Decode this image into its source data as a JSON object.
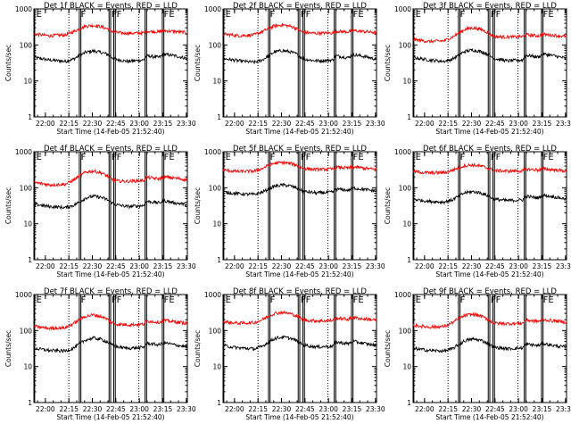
{
  "chart_data": {
    "type": "line",
    "panel_count": 9,
    "layout": "3x3 grid",
    "shared_x_axis": {
      "label": "Start Time (14-Feb-05 21:52:40)",
      "range_minutes": [
        0,
        98
      ],
      "tick_labels": [
        "22:00",
        "22:15",
        "22:30",
        "22:45",
        "23:00",
        "23:15",
        "23:30"
      ],
      "tick_values_minutes": [
        7.33,
        22.33,
        37.33,
        52.33,
        67.33,
        82.33,
        97.33
      ]
    },
    "shared_y_axis": {
      "label": "Counts/sec",
      "scale": "log",
      "range": [
        1,
        1000
      ],
      "tick_labels": [
        "1",
        "10",
        "100",
        "1000"
      ],
      "tick_values": [
        1,
        10,
        100,
        1000
      ]
    },
    "colors": {
      "events": "#000000",
      "lld": "#ff0000",
      "axis": "#000000",
      "background": "#ffffff"
    },
    "flag_markers": {
      "vertical_lines_minutes": [
        0.5,
        29,
        30,
        48,
        49,
        51,
        52,
        71,
        72,
        82,
        83
      ],
      "dotted_lines_minutes": [
        22.3,
        67
      ]
    },
    "panels": [
      {
        "title": "Det 1f BLACK = Events, RED = LLD",
        "flag_labels": [
          {
            "text": "E",
            "minute": 1.5
          },
          {
            "text": "F",
            "minute": 30
          },
          {
            "text": "FF",
            "minute": 49.5
          },
          {
            "text": "FE",
            "minute": 83
          }
        ],
        "series": [
          {
            "name": "Events",
            "color": "#000000",
            "minutes": [
              0,
              10,
              20,
              25,
              29,
              33,
              38,
              43,
              47,
              49,
              52,
              60,
              70,
              72,
              80,
              83,
              90,
              98
            ],
            "values": [
              45,
              38,
              35,
              40,
              50,
              62,
              68,
              62,
              55,
              48,
              40,
              35,
              38,
              50,
              45,
              55,
              50,
              42
            ]
          },
          {
            "name": "LLD",
            "color": "#ff0000",
            "minutes": [
              0,
              10,
              20,
              25,
              29,
              33,
              38,
              43,
              47,
              49,
              52,
              60,
              70,
              72,
              80,
              83,
              90,
              98
            ],
            "values": [
              200,
              180,
              190,
              230,
              280,
              330,
              350,
              320,
              280,
              250,
              220,
              210,
              215,
              240,
              230,
              250,
              235,
              220
            ]
          }
        ]
      },
      {
        "title": "Det 2f BLACK = Events, RED = LLD",
        "flag_labels": [
          {
            "text": "E",
            "minute": 1.5
          },
          {
            "text": "F",
            "minute": 30
          },
          {
            "text": "FF",
            "minute": 49.5
          },
          {
            "text": "FE",
            "minute": 83
          }
        ],
        "series": [
          {
            "name": "Events",
            "color": "#000000",
            "minutes": [
              0,
              10,
              20,
              25,
              29,
              33,
              38,
              43,
              47,
              49,
              52,
              60,
              70,
              72,
              80,
              83,
              90,
              98
            ],
            "values": [
              42,
              36,
              33,
              38,
              50,
              64,
              70,
              64,
              56,
              48,
              40,
              36,
              38,
              50,
              44,
              54,
              48,
              40
            ]
          },
          {
            "name": "LLD",
            "color": "#ff0000",
            "minutes": [
              0,
              10,
              20,
              25,
              29,
              33,
              38,
              43,
              47,
              49,
              52,
              60,
              70,
              72,
              80,
              83,
              90,
              98
            ],
            "values": [
              200,
              180,
              190,
              235,
              285,
              340,
              360,
              330,
              285,
              250,
              220,
              210,
              215,
              240,
              230,
              250,
              235,
              220
            ]
          }
        ]
      },
      {
        "title": "Det 3f BLACK = Events, RED = LLD",
        "flag_labels": [
          {
            "text": "E",
            "minute": 1.5
          },
          {
            "text": "F",
            "minute": 30
          },
          {
            "text": "FF",
            "minute": 49.5
          },
          {
            "text": "FE",
            "minute": 83
          }
        ],
        "series": [
          {
            "name": "Events",
            "color": "#000000",
            "minutes": [
              0,
              10,
              20,
              25,
              29,
              33,
              38,
              43,
              47,
              49,
              52,
              60,
              70,
              72,
              80,
              83,
              90,
              98
            ],
            "values": [
              45,
              38,
              35,
              40,
              52,
              66,
              72,
              66,
              57,
              50,
              42,
              36,
              38,
              52,
              46,
              56,
              50,
              42
            ]
          },
          {
            "name": "LLD",
            "color": "#ff0000",
            "minutes": [
              0,
              10,
              20,
              25,
              29,
              33,
              38,
              43,
              47,
              49,
              52,
              60,
              70,
              72,
              80,
              83,
              90,
              98
            ],
            "values": [
              140,
              125,
              130,
              165,
              210,
              270,
              300,
              275,
              230,
              200,
              170,
              165,
              170,
              190,
              180,
              195,
              185,
              170
            ]
          }
        ]
      },
      {
        "title": "Det 4f BLACK = Events, RED = LLD",
        "flag_labels": [
          {
            "text": "E",
            "minute": 1.5
          },
          {
            "text": "F",
            "minute": 30
          },
          {
            "text": "FF",
            "minute": 49.5
          },
          {
            "text": "FE",
            "minute": 83
          }
        ],
        "series": [
          {
            "name": "Events",
            "color": "#000000",
            "minutes": [
              0,
              10,
              20,
              25,
              29,
              33,
              38,
              43,
              47,
              49,
              52,
              60,
              70,
              72,
              80,
              83,
              90,
              98
            ],
            "values": [
              35,
              30,
              28,
              32,
              40,
              52,
              58,
              54,
              46,
              40,
              34,
              30,
              32,
              42,
              38,
              44,
              38,
              34
            ]
          },
          {
            "name": "LLD",
            "color": "#ff0000",
            "minutes": [
              0,
              10,
              20,
              25,
              29,
              33,
              38,
              43,
              47,
              49,
              52,
              60,
              70,
              72,
              80,
              83,
              90,
              98
            ],
            "values": [
              140,
              120,
              125,
              160,
              210,
              270,
              290,
              260,
              210,
              180,
              155,
              150,
              160,
              195,
              175,
              200,
              185,
              165
            ]
          }
        ]
      },
      {
        "title": "Det 5f BLACK = Events, RED = LLD",
        "flag_labels": [
          {
            "text": "E",
            "minute": 1.5
          },
          {
            "text": "F",
            "minute": 30
          },
          {
            "text": "FF",
            "minute": 49.5
          },
          {
            "text": "FE",
            "minute": 83
          }
        ],
        "series": [
          {
            "name": "Events",
            "color": "#000000",
            "minutes": [
              0,
              10,
              20,
              25,
              29,
              33,
              38,
              43,
              47,
              49,
              52,
              60,
              70,
              72,
              80,
              83,
              90,
              98
            ],
            "values": [
              75,
              68,
              65,
              75,
              92,
              110,
              120,
              112,
              98,
              88,
              78,
              72,
              75,
              92,
              85,
              98,
              90,
              80
            ]
          },
          {
            "name": "LLD",
            "color": "#ff0000",
            "minutes": [
              0,
              10,
              20,
              25,
              29,
              33,
              38,
              43,
              47,
              49,
              52,
              60,
              70,
              72,
              80,
              83,
              90,
              98
            ],
            "values": [
              310,
              280,
              290,
              340,
              420,
              480,
              500,
              470,
              420,
              380,
              340,
              320,
              330,
              370,
              350,
              380,
              350,
              320
            ]
          }
        ]
      },
      {
        "title": "Det 6f BLACK = Events, RED = LLD",
        "flag_labels": [
          {
            "text": "E",
            "minute": 1.5
          },
          {
            "text": "F",
            "minute": 30
          },
          {
            "text": "FF",
            "minute": 49.5
          },
          {
            "text": "FE",
            "minute": 83
          }
        ],
        "series": [
          {
            "name": "Events",
            "color": "#000000",
            "minutes": [
              0,
              10,
              20,
              25,
              29,
              33,
              38,
              43,
              47,
              49,
              52,
              60,
              70,
              72,
              80,
              83,
              90,
              98
            ],
            "values": [
              48,
              42,
              40,
              46,
              58,
              72,
              78,
              72,
              62,
              56,
              48,
              44,
              46,
              58,
              52,
              62,
              56,
              48
            ]
          },
          {
            "name": "LLD",
            "color": "#ff0000",
            "minutes": [
              0,
              10,
              20,
              25,
              29,
              33,
              38,
              43,
              47,
              49,
              52,
              60,
              70,
              72,
              80,
              83,
              90,
              98
            ],
            "values": [
              280,
              260,
              265,
              305,
              360,
              410,
              430,
              400,
              360,
              330,
              300,
              290,
              295,
              330,
              310,
              335,
              315,
              290
            ]
          }
        ]
      },
      {
        "title": "Det 7f BLACK = Events, RED = LLD",
        "flag_labels": [
          {
            "text": "E",
            "minute": 1.5
          },
          {
            "text": "F",
            "minute": 30
          },
          {
            "text": "FF",
            "minute": 49.5
          },
          {
            "text": "FE",
            "minute": 83
          }
        ],
        "series": [
          {
            "name": "Events",
            "color": "#000000",
            "minutes": [
              0,
              10,
              20,
              25,
              29,
              33,
              38,
              43,
              47,
              49,
              52,
              60,
              70,
              72,
              80,
              83,
              90,
              98
            ],
            "values": [
              32,
              28,
              27,
              32,
              42,
              55,
              62,
              57,
              48,
              42,
              36,
              32,
              34,
              44,
              40,
              46,
              40,
              35
            ]
          },
          {
            "name": "LLD",
            "color": "#ff0000",
            "minutes": [
              0,
              10,
              20,
              25,
              29,
              33,
              38,
              43,
              47,
              49,
              52,
              60,
              70,
              72,
              80,
              83,
              90,
              98
            ],
            "values": [
              130,
              115,
              120,
              155,
              200,
              250,
              270,
              245,
              205,
              175,
              150,
              145,
              150,
              185,
              170,
              190,
              175,
              160
            ]
          }
        ]
      },
      {
        "title": "Det 8f BLACK = Events, RED = LLD",
        "flag_labels": [
          {
            "text": "E",
            "minute": 1.5
          },
          {
            "text": "F",
            "minute": 30
          },
          {
            "text": "FF",
            "minute": 49.5
          },
          {
            "text": "FE",
            "minute": 83
          }
        ],
        "series": [
          {
            "name": "Events",
            "color": "#000000",
            "minutes": [
              0,
              10,
              20,
              25,
              29,
              33,
              38,
              43,
              47,
              49,
              52,
              60,
              70,
              72,
              80,
              83,
              90,
              98
            ],
            "values": [
              38,
              33,
              31,
              36,
              48,
              60,
              66,
              61,
              52,
              46,
              39,
              35,
              37,
              48,
              43,
              50,
              44,
              38
            ]
          },
          {
            "name": "LLD",
            "color": "#ff0000",
            "minutes": [
              0,
              10,
              20,
              25,
              29,
              33,
              38,
              43,
              47,
              49,
              52,
              60,
              70,
              72,
              80,
              83,
              90,
              98
            ],
            "values": [
              175,
              160,
              165,
              200,
              250,
              300,
              320,
              295,
              255,
              225,
              195,
              185,
              190,
              225,
              205,
              230,
              210,
              195
            ]
          }
        ]
      },
      {
        "title": "Det 9f BLACK = Events, RED = LLD",
        "flag_labels": [
          {
            "text": "E",
            "minute": 1.5
          },
          {
            "text": "F",
            "minute": 30
          },
          {
            "text": "FF",
            "minute": 49.5
          },
          {
            "text": "FE",
            "minute": 83
          }
        ],
        "series": [
          {
            "name": "Events",
            "color": "#000000",
            "minutes": [
              0,
              10,
              20,
              25,
              29,
              33,
              38,
              43,
              47,
              49,
              52,
              60,
              70,
              72,
              80,
              83,
              90,
              98
            ],
            "values": [
              32,
              28,
              27,
              31,
              40,
              52,
              58,
              54,
              46,
              40,
              34,
              31,
              33,
              42,
              38,
              44,
              38,
              34
            ]
          },
          {
            "name": "LLD",
            "color": "#ff0000",
            "minutes": [
              0,
              10,
              20,
              25,
              29,
              33,
              38,
              43,
              47,
              49,
              52,
              60,
              70,
              72,
              80,
              83,
              90,
              98
            ],
            "values": [
              140,
              125,
              130,
              165,
              210,
              260,
              280,
              255,
              215,
              185,
              160,
              155,
              160,
              195,
              180,
              200,
              185,
              170
            ]
          }
        ]
      }
    ]
  }
}
